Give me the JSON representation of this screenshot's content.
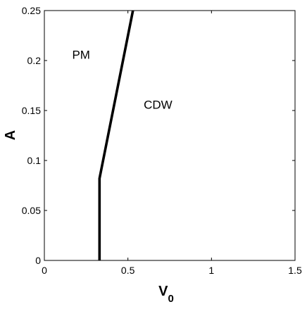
{
  "chart_data": {
    "type": "line",
    "xlabel": "V",
    "xlabel_subscript": "0",
    "ylabel": "A",
    "xlim": [
      0,
      1.5
    ],
    "ylim": [
      0,
      0.25
    ],
    "x_ticks": [
      0,
      0.5,
      1,
      1.5
    ],
    "x_tick_labels": [
      "0",
      "0.5",
      "1",
      "1.5"
    ],
    "y_ticks": [
      0,
      0.05,
      0.1,
      0.15,
      0.2,
      0.25
    ],
    "y_tick_labels": [
      "0",
      "0.05",
      "0.1",
      "0.15",
      "0.2",
      "0.25"
    ],
    "grid": false,
    "series": [
      {
        "x": [
          0.33,
          0.33,
          0.53
        ],
        "y": [
          0,
          0.082,
          0.25
        ],
        "color": "#000000"
      }
    ],
    "annotations": [
      {
        "text": "PM",
        "x": 0.22,
        "y": 0.206
      },
      {
        "text": "CDW",
        "x": 0.68,
        "y": 0.156
      }
    ]
  }
}
